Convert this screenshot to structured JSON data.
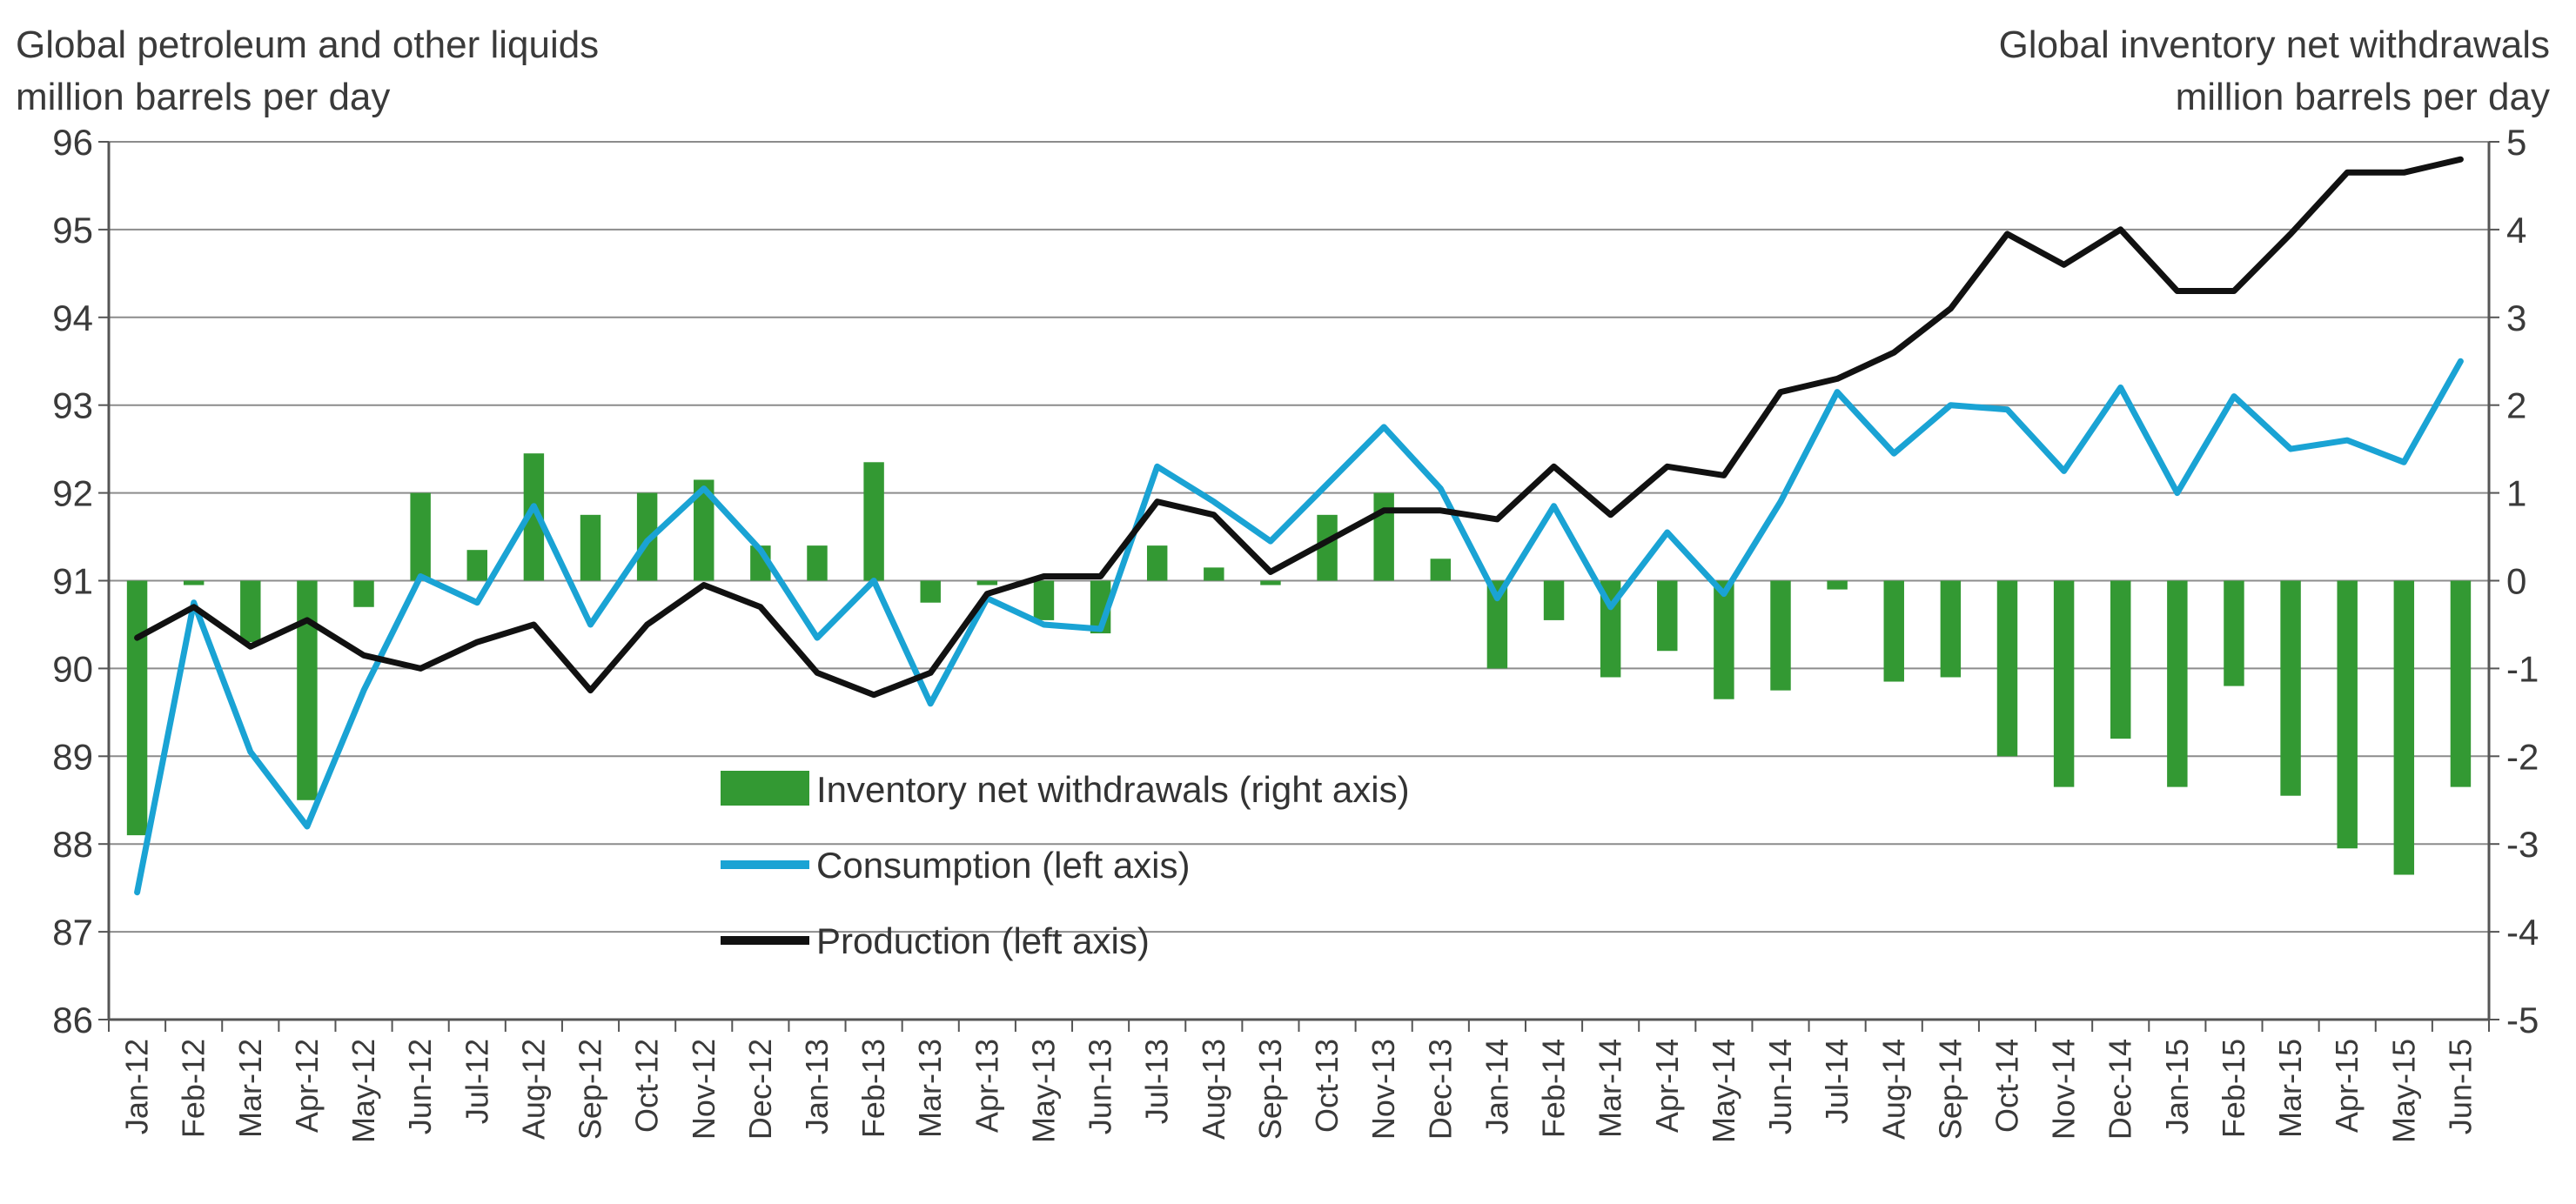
{
  "chart_data": {
    "type": "bar+line",
    "left_axis_title": [
      "Global petroleum and other liquids",
      "million barrels per day"
    ],
    "right_axis_title": [
      "Global inventory net withdrawals",
      "million barrels per day"
    ],
    "left_ylim": [
      86,
      96
    ],
    "right_ylim": [
      -5,
      5
    ],
    "left_ticks": [
      "96",
      "95",
      "94",
      "93",
      "92",
      "91",
      "90",
      "89",
      "88",
      "87",
      "86"
    ],
    "right_ticks": [
      "5",
      "4",
      "3",
      "2",
      "1",
      "0",
      "-1",
      "-2",
      "-3",
      "-4",
      "-5"
    ],
    "categories": [
      "Jan-12",
      "Feb-12",
      "Mar-12",
      "Apr-12",
      "May-12",
      "Jun-12",
      "Jul-12",
      "Aug-12",
      "Sep-12",
      "Oct-12",
      "Nov-12",
      "Dec-12",
      "Jan-13",
      "Feb-13",
      "Mar-13",
      "Apr-13",
      "May-13",
      "Jun-13",
      "Jul-13",
      "Aug-13",
      "Sep-13",
      "Oct-13",
      "Nov-13",
      "Dec-13",
      "Jan-14",
      "Feb-14",
      "Mar-14",
      "Apr-14",
      "May-14",
      "Jun-14",
      "Jul-14",
      "Aug-14",
      "Sep-14",
      "Oct-14",
      "Nov-14",
      "Dec-14",
      "Jan-15",
      "Feb-15",
      "Mar-15",
      "Apr-15",
      "May-15",
      "Jun-15"
    ],
    "series": [
      {
        "name": "Inventory net withdrawals (right axis)",
        "axis": "right",
        "kind": "bar",
        "color": "#339933",
        "values": [
          -2.9,
          -0.05,
          -0.7,
          -2.5,
          -0.3,
          1.0,
          0.35,
          1.45,
          0.75,
          1.0,
          1.15,
          0.4,
          0.4,
          1.35,
          -0.25,
          -0.05,
          -0.45,
          -0.6,
          0.4,
          0.15,
          -0.05,
          0.75,
          1.0,
          0.25,
          -1.0,
          -0.45,
          -1.1,
          -0.8,
          -1.35,
          -1.25,
          -0.1,
          -1.15,
          -1.1,
          -2.0,
          -2.35,
          -1.8,
          -2.35,
          -1.2,
          -2.45,
          -3.05,
          -3.35,
          -2.35
        ]
      },
      {
        "name": "Consumption (left axis)",
        "axis": "left",
        "kind": "line",
        "color": "#1aa3d4",
        "values": [
          87.45,
          90.75,
          89.05,
          88.2,
          89.75,
          91.05,
          90.75,
          91.85,
          90.5,
          91.45,
          92.05,
          91.35,
          90.35,
          91.0,
          89.6,
          90.8,
          90.5,
          90.45,
          92.3,
          91.9,
          91.45,
          92.1,
          92.75,
          92.05,
          90.8,
          91.85,
          90.7,
          91.55,
          90.85,
          91.9,
          93.15,
          92.45,
          93.0,
          92.95,
          92.25,
          93.2,
          92.0,
          93.1,
          92.5,
          92.6,
          92.35,
          93.5
        ]
      },
      {
        "name": "Production (left axis)",
        "axis": "left",
        "kind": "line",
        "color": "#111111",
        "values": [
          90.35,
          90.7,
          90.25,
          90.55,
          90.15,
          90.0,
          90.3,
          90.5,
          89.75,
          90.5,
          90.95,
          90.7,
          89.95,
          89.7,
          89.95,
          90.85,
          91.05,
          91.05,
          91.9,
          91.75,
          91.1,
          91.45,
          91.8,
          91.8,
          91.7,
          92.3,
          91.75,
          92.3,
          92.2,
          93.15,
          93.3,
          93.6,
          94.1,
          94.95,
          94.6,
          95.0,
          94.3,
          94.3,
          94.95,
          95.65,
          95.65,
          95.8
        ]
      }
    ],
    "legend_order": [
      0,
      1,
      2
    ],
    "legend_position": "center-left-lower",
    "grid": "horizontal"
  }
}
